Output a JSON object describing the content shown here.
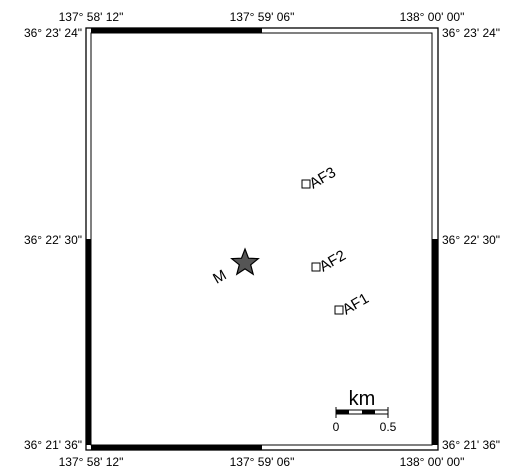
{
  "map": {
    "lon_ticks": [
      "137° 58' 12\"",
      "137° 59' 06\"",
      "138° 00' 00\""
    ],
    "lat_ticks": [
      "36° 23' 24\"",
      "36° 22' 30\"",
      "36° 21' 36\""
    ],
    "mainshock_label": "M",
    "mainshock_color": "#555555",
    "stations": [
      {
        "label": "AF3"
      },
      {
        "label": "AF2"
      },
      {
        "label": "AF1"
      }
    ],
    "scale_bar": {
      "unit": "km",
      "ticks": [
        "0",
        "0.5"
      ]
    }
  }
}
